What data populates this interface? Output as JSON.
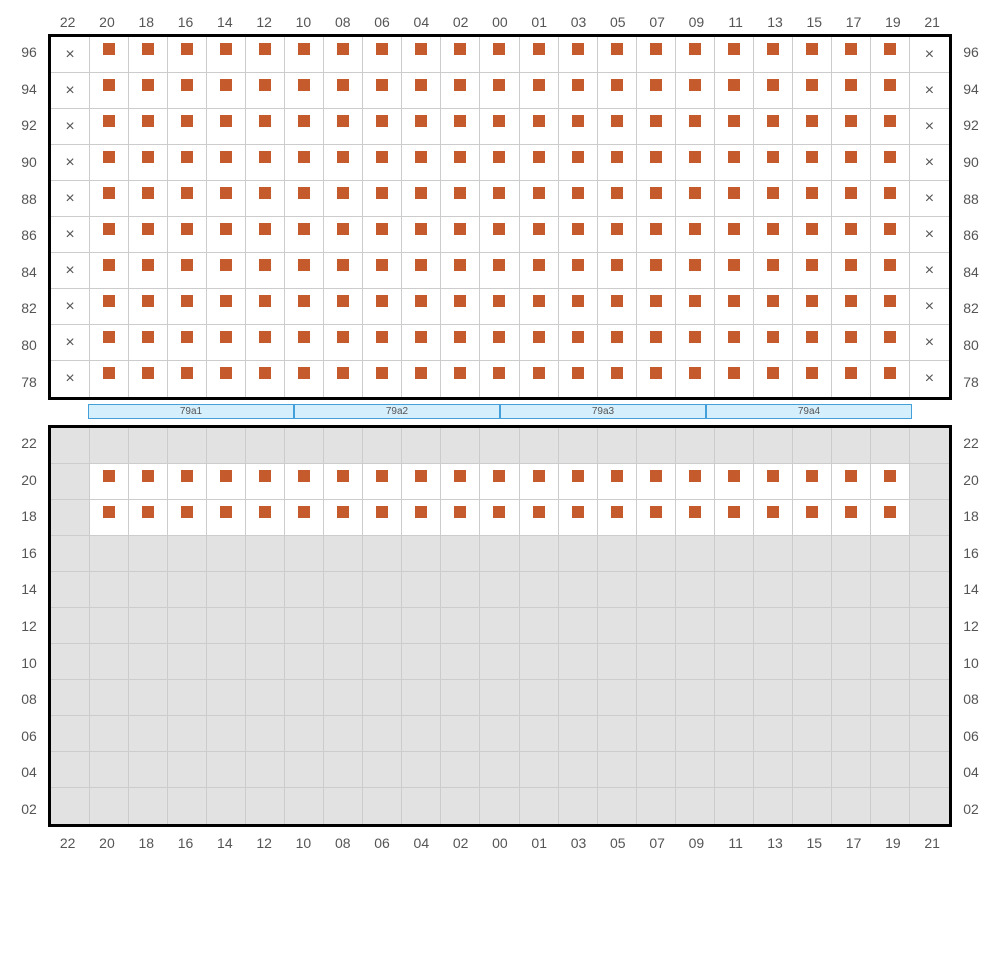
{
  "layout": {
    "cols": 23,
    "col_headers": [
      "22",
      "20",
      "18",
      "16",
      "14",
      "12",
      "10",
      "08",
      "06",
      "04",
      "02",
      "00",
      "01",
      "03",
      "05",
      "07",
      "09",
      "11",
      "13",
      "15",
      "17",
      "19",
      "21"
    ],
    "upper": {
      "rows": 10,
      "row_headers": [
        "96",
        "94",
        "92",
        "90",
        "88",
        "86",
        "84",
        "82",
        "80",
        "78"
      ],
      "cells_pattern": "per_row_all_dots_except_first_last_x",
      "dot_color": "#c55a2d",
      "x_symbol": "×"
    },
    "divider": {
      "labels": [
        "79a1",
        "79a2",
        "79a3",
        "79a4"
      ],
      "bg": "#d6effc",
      "border": "#44a0d8"
    },
    "lower": {
      "rows": 11,
      "row_headers": [
        "22",
        "20",
        "18",
        "16",
        "14",
        "12",
        "10",
        "08",
        "06",
        "04",
        "02"
      ],
      "active_rows": [
        1,
        2
      ],
      "active_cols_start": 1,
      "active_cols_end": 21,
      "blank_bg": "#e2e2e2"
    },
    "colors": {
      "grid_border": "#000000",
      "cell_border": "#cccccc",
      "label_text": "#555555",
      "dot": "#c55a2d",
      "blank": "#e2e2e2"
    },
    "fonts": {
      "label_size": 14,
      "divider_size": 10
    }
  }
}
